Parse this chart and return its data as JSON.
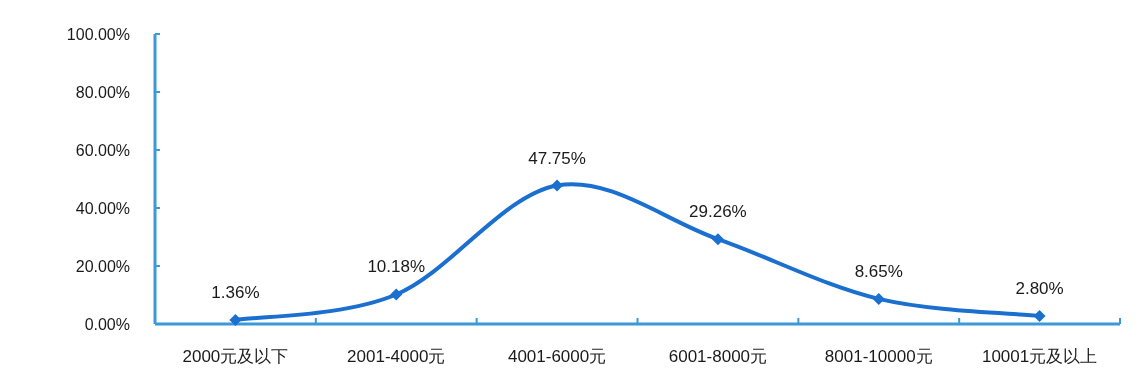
{
  "chart_data": {
    "type": "line",
    "categories": [
      "2000元及以下",
      "2001-4000元",
      "4001-6000元",
      "6001-8000元",
      "8001-10000元",
      "10001元及以上"
    ],
    "values": [
      1.36,
      10.18,
      47.75,
      29.26,
      8.65,
      2.8
    ],
    "value_labels": [
      "1.36%",
      "10.18%",
      "47.75%",
      "29.26%",
      "8.65%",
      "2.80%"
    ],
    "color": "#1a6fcf",
    "marker": "diamond",
    "line_style": "solid",
    "ylim": [
      0,
      100
    ],
    "yticks": [
      {
        "value": 0,
        "label": "0.00%"
      },
      {
        "value": 20,
        "label": "20.00%"
      },
      {
        "value": 40,
        "label": "40.00%"
      },
      {
        "value": 60,
        "label": "60.00%"
      },
      {
        "value": 80,
        "label": "80.00%"
      },
      {
        "value": 100,
        "label": "100.00%"
      }
    ]
  }
}
